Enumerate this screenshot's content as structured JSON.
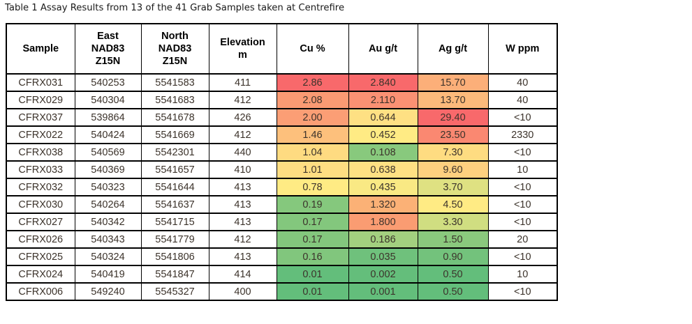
{
  "title": "Table 1 Assay Results from 13 of the 41 Grab Samples taken at Centrefire",
  "colors": {
    "heat_max_red": "#F8696B",
    "heat_mid_yellow": "#FFEB84",
    "heat_min_green": "#63BE7B",
    "border": "#000000",
    "text": "#3C332B"
  },
  "table": {
    "columns": [
      {
        "id": "sample",
        "label": "Sample"
      },
      {
        "id": "east",
        "label": "East\nNAD83\nZ15N"
      },
      {
        "id": "north",
        "label": "North\nNAD83\nZ15N"
      },
      {
        "id": "elevation",
        "label": "Elevation\nm"
      },
      {
        "id": "cu",
        "label": "Cu %"
      },
      {
        "id": "au",
        "label": "Au g/t"
      },
      {
        "id": "ag",
        "label": "Ag g/t"
      },
      {
        "id": "w",
        "label": "W ppm"
      }
    ],
    "rows": [
      {
        "sample": "CFRX031",
        "east": "540253",
        "north": "5541583",
        "elevation": "411",
        "cu": {
          "value": "2.86",
          "bg": "#F8696B"
        },
        "au": {
          "value": "2.840",
          "bg": "#F8696B"
        },
        "ag": {
          "value": "15.70",
          "bg": "#FCAF79"
        },
        "w": {
          "value": "40",
          "bg": "#FFFFFF"
        }
      },
      {
        "sample": "CFRX029",
        "east": "540304",
        "north": "5541683",
        "elevation": "412",
        "cu": {
          "value": "2.08",
          "bg": "#FA9A73"
        },
        "au": {
          "value": "2.110",
          "bg": "#FA9173"
        },
        "ag": {
          "value": "13.70",
          "bg": "#FCBA7B"
        },
        "w": {
          "value": "40",
          "bg": "#FFFFFF"
        }
      },
      {
        "sample": "CFRX037",
        "east": "539864",
        "north": "5541678",
        "elevation": "426",
        "cu": {
          "value": "2.00",
          "bg": "#FB9E75"
        },
        "au": {
          "value": "0.644",
          "bg": "#FEE083"
        },
        "ag": {
          "value": "29.40",
          "bg": "#F8696B"
        },
        "w": {
          "value": "<10",
          "bg": "#FFFFFF"
        }
      },
      {
        "sample": "CFRX022",
        "east": "540424",
        "north": "5541669",
        "elevation": "412",
        "cu": {
          "value": "1.46",
          "bg": "#FDC07C"
        },
        "au": {
          "value": "0.452",
          "bg": "#FFEB84"
        },
        "ag": {
          "value": "23.50",
          "bg": "#FA8871"
        },
        "w": {
          "value": "2330",
          "bg": "#FFFFFF"
        }
      },
      {
        "sample": "CFRX038",
        "east": "540569",
        "north": "5542301",
        "elevation": "440",
        "cu": {
          "value": "1.04",
          "bg": "#FEDB81"
        },
        "au": {
          "value": "0.108",
          "bg": "#88C97D"
        },
        "ag": {
          "value": "7.30",
          "bg": "#FEDC81"
        },
        "w": {
          "value": "<10",
          "bg": "#FFFFFF"
        }
      },
      {
        "sample": "CFRX033",
        "east": "540369",
        "north": "5541657",
        "elevation": "410",
        "cu": {
          "value": "1.01",
          "bg": "#FEDD82"
        },
        "au": {
          "value": "0.638",
          "bg": "#FEE083"
        },
        "ag": {
          "value": "9.60",
          "bg": "#FED07F"
        },
        "w": {
          "value": "10",
          "bg": "#FFFFFF"
        }
      },
      {
        "sample": "CFRX032",
        "east": "540323",
        "north": "5541644",
        "elevation": "413",
        "cu": {
          "value": "0.78",
          "bg": "#FFEB84"
        },
        "au": {
          "value": "0.435",
          "bg": "#F9E984"
        },
        "ag": {
          "value": "3.70",
          "bg": "#DFE182"
        },
        "w": {
          "value": "<10",
          "bg": "#FFFFFF"
        }
      },
      {
        "sample": "CFRX030",
        "east": "540264",
        "north": "5541637",
        "elevation": "413",
        "cu": {
          "value": "0.19",
          "bg": "#85C87D"
        },
        "au": {
          "value": "1.320",
          "bg": "#FBB176"
        },
        "ag": {
          "value": "4.50",
          "bg": "#FFEB84"
        },
        "w": {
          "value": "<10",
          "bg": "#FFFFFF"
        }
      },
      {
        "sample": "CFRX027",
        "east": "540342",
        "north": "5541715",
        "elevation": "413",
        "cu": {
          "value": "0.17",
          "bg": "#83C77D"
        },
        "au": {
          "value": "1.800",
          "bg": "#FA9C72"
        },
        "ag": {
          "value": "3.30",
          "bg": "#D0DE81"
        },
        "w": {
          "value": "<10",
          "bg": "#FFFFFF"
        }
      },
      {
        "sample": "CFRX026",
        "east": "540343",
        "north": "5541779",
        "elevation": "412",
        "cu": {
          "value": "0.17",
          "bg": "#83C77D"
        },
        "au": {
          "value": "0.186",
          "bg": "#A3D07F"
        },
        "ag": {
          "value": "1.50",
          "bg": "#8AC97D"
        },
        "w": {
          "value": "20",
          "bg": "#FFFFFF"
        }
      },
      {
        "sample": "CFRX025",
        "east": "540324",
        "north": "5541806",
        "elevation": "413",
        "cu": {
          "value": "0.16",
          "bg": "#81C67D"
        },
        "au": {
          "value": "0.035",
          "bg": "#6FC17C"
        },
        "ag": {
          "value": "0.90",
          "bg": "#73C27C"
        },
        "w": {
          "value": "<10",
          "bg": "#FFFFFF"
        }
      },
      {
        "sample": "CFRX024",
        "east": "540419",
        "north": "5541847",
        "elevation": "414",
        "cu": {
          "value": "0.01",
          "bg": "#63BE7B"
        },
        "au": {
          "value": "0.002",
          "bg": "#64BE7B"
        },
        "ag": {
          "value": "0.50",
          "bg": "#63BE7B"
        },
        "w": {
          "value": "10",
          "bg": "#FFFFFF"
        }
      },
      {
        "sample": "CFRX006",
        "east": "549240",
        "north": "5545327",
        "elevation": "400",
        "cu": {
          "value": "0.01",
          "bg": "#63BE7B"
        },
        "au": {
          "value": "0.001",
          "bg": "#63BE7B"
        },
        "ag": {
          "value": "0.50",
          "bg": "#63BE7B"
        },
        "w": {
          "value": "<10",
          "bg": "#FFFFFF"
        }
      }
    ]
  }
}
